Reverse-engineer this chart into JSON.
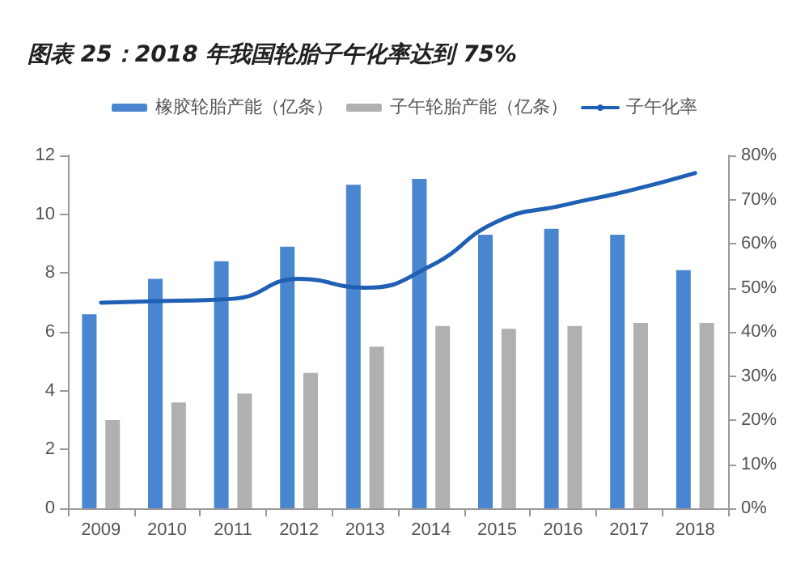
{
  "chart_data": {
    "type": "bar",
    "title": "图表 25：2018 年我国轮胎子午化率达到 75%",
    "categories": [
      "2009",
      "2010",
      "2011",
      "2012",
      "2013",
      "2014",
      "2015",
      "2016",
      "2017",
      "2018"
    ],
    "series": [
      {
        "name": "橡胶轮胎产能（亿条）",
        "color": "#4a86d0",
        "values": [
          6.6,
          7.8,
          8.4,
          8.9,
          11.0,
          11.2,
          9.3,
          9.5,
          9.3,
          8.1
        ]
      },
      {
        "name": "子午轮胎产能（亿条）",
        "color": "#b0b0b0",
        "values": [
          3.0,
          3.6,
          3.9,
          4.6,
          5.5,
          6.2,
          6.1,
          6.2,
          6.3,
          6.3
        ]
      },
      {
        "name": "子午化率",
        "type": "line",
        "axis": "y2",
        "color": "#1f5fb4",
        "values": [
          46.6,
          47,
          47.5,
          52,
          50,
          55,
          65,
          68.7,
          72,
          76
        ]
      }
    ],
    "ylim": [
      0,
      12
    ],
    "yticks": [
      0,
      2,
      4,
      6,
      8,
      10,
      12
    ],
    "y2lim": [
      0,
      80
    ],
    "y2ticks": [
      {
        "value": 0,
        "label": "0%"
      },
      {
        "value": 10,
        "label": "10%"
      },
      {
        "value": 20,
        "label": "20%"
      },
      {
        "value": 30,
        "label": "30%"
      },
      {
        "value": 40,
        "label": "40%"
      },
      {
        "value": 50,
        "label": "50%"
      },
      {
        "value": 60,
        "label": "60%"
      },
      {
        "value": 70,
        "label": "70%"
      },
      {
        "value": 80,
        "label": "80%"
      }
    ],
    "legend": "top",
    "grid": false,
    "marker": "none"
  }
}
